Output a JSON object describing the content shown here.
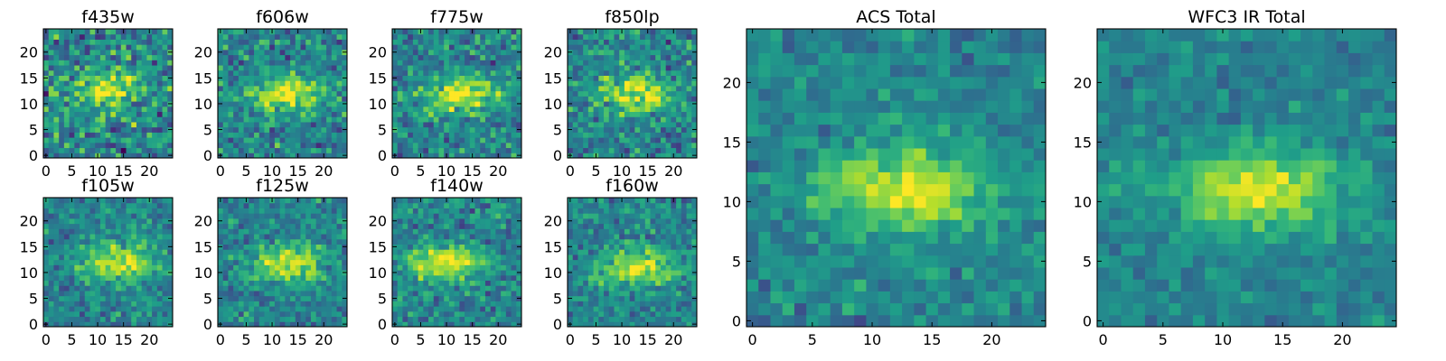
{
  "figure": {
    "background": "#ffffff"
  },
  "chart_data": [
    {
      "type": "heatmap",
      "title": "f435w",
      "xlabel": "",
      "ylabel": "",
      "grid": false,
      "colormap": "viridis",
      "xlim": [
        -0.5,
        24.5
      ],
      "ylim": [
        -0.5,
        24.5
      ],
      "xticks": [
        0,
        5,
        10,
        15,
        20
      ],
      "yticks": [
        0,
        5,
        10,
        15,
        20
      ],
      "peak": {
        "x": 12,
        "y": 13
      },
      "noise": 0.45,
      "seed": 11,
      "rows": 25,
      "cols": 25
    },
    {
      "type": "heatmap",
      "title": "f606w",
      "xlabel": "",
      "ylabel": "",
      "grid": false,
      "colormap": "viridis",
      "xlim": [
        -0.5,
        24.5
      ],
      "ylim": [
        -0.5,
        24.5
      ],
      "xticks": [
        0,
        5,
        10,
        15,
        20
      ],
      "yticks": [
        0,
        5,
        10,
        15,
        20
      ],
      "peak": {
        "x": 13,
        "y": 12
      },
      "noise": 0.35,
      "seed": 23,
      "rows": 25,
      "cols": 25
    },
    {
      "type": "heatmap",
      "title": "f775w",
      "xlabel": "",
      "ylabel": "",
      "grid": false,
      "colormap": "viridis",
      "xlim": [
        -0.5,
        24.5
      ],
      "ylim": [
        -0.5,
        24.5
      ],
      "xticks": [
        0,
        5,
        10,
        15,
        20
      ],
      "yticks": [
        0,
        5,
        10,
        15,
        20
      ],
      "peak": {
        "x": 13,
        "y": 12
      },
      "noise": 0.35,
      "seed": 37,
      "rows": 25,
      "cols": 25
    },
    {
      "type": "heatmap",
      "title": "f850lp",
      "xlabel": "",
      "ylabel": "",
      "grid": false,
      "colormap": "viridis",
      "xlim": [
        -0.5,
        24.5
      ],
      "ylim": [
        -0.5,
        24.5
      ],
      "xticks": [
        0,
        5,
        10,
        15,
        20
      ],
      "yticks": [
        0,
        5,
        10,
        15,
        20
      ],
      "peak": {
        "x": 13,
        "y": 12
      },
      "noise": 0.35,
      "seed": 41,
      "rows": 25,
      "cols": 25
    },
    {
      "type": "heatmap",
      "title": "f105w",
      "xlabel": "",
      "ylabel": "",
      "grid": false,
      "colormap": "viridis",
      "xlim": [
        -0.5,
        24.5
      ],
      "ylim": [
        -0.5,
        24.5
      ],
      "xticks": [
        0,
        5,
        10,
        15,
        20
      ],
      "yticks": [
        0,
        5,
        10,
        15,
        20
      ],
      "peak": {
        "x": 14,
        "y": 12
      },
      "noise": 0.28,
      "seed": 53,
      "rows": 25,
      "cols": 25
    },
    {
      "type": "heatmap",
      "title": "f125w",
      "xlabel": "",
      "ylabel": "",
      "grid": false,
      "colormap": "viridis",
      "xlim": [
        -0.5,
        24.5
      ],
      "ylim": [
        -0.5,
        24.5
      ],
      "xticks": [
        0,
        5,
        10,
        15,
        20
      ],
      "yticks": [
        0,
        5,
        10,
        15,
        20
      ],
      "peak": {
        "x": 13,
        "y": 12
      },
      "noise": 0.28,
      "seed": 67,
      "rows": 25,
      "cols": 25
    },
    {
      "type": "heatmap",
      "title": "f140w",
      "xlabel": "",
      "ylabel": "",
      "grid": false,
      "colormap": "viridis",
      "xlim": [
        -0.5,
        24.5
      ],
      "ylim": [
        -0.5,
        24.5
      ],
      "xticks": [
        0,
        5,
        10,
        15,
        20
      ],
      "yticks": [
        0,
        5,
        10,
        15,
        20
      ],
      "peak": {
        "x": 10,
        "y": 12
      },
      "noise": 0.3,
      "seed": 71,
      "rows": 25,
      "cols": 25
    },
    {
      "type": "heatmap",
      "title": "f160w",
      "xlabel": "",
      "ylabel": "",
      "grid": false,
      "colormap": "viridis",
      "xlim": [
        -0.5,
        24.5
      ],
      "ylim": [
        -0.5,
        24.5
      ],
      "xticks": [
        0,
        5,
        10,
        15,
        20
      ],
      "yticks": [
        0,
        5,
        10,
        15,
        20
      ],
      "peak": {
        "x": 13,
        "y": 11
      },
      "noise": 0.28,
      "seed": 89,
      "rows": 25,
      "cols": 25
    },
    {
      "type": "heatmap",
      "title": "ACS Total",
      "xlabel": "",
      "ylabel": "",
      "grid": false,
      "colormap": "viridis",
      "xlim": [
        -0.5,
        24.5
      ],
      "ylim": [
        -0.5,
        24.5
      ],
      "xticks": [
        0,
        5,
        10,
        15,
        20
      ],
      "yticks": [
        0,
        5,
        10,
        15,
        20
      ],
      "peak": {
        "x": 13,
        "y": 11
      },
      "noise": 0.22,
      "seed": 97,
      "rows": 25,
      "cols": 25
    },
    {
      "type": "heatmap",
      "title": "WFC3 IR Total",
      "xlabel": "",
      "ylabel": "",
      "grid": false,
      "colormap": "viridis",
      "xlim": [
        -0.5,
        24.5
      ],
      "ylim": [
        -0.5,
        24.5
      ],
      "xticks": [
        0,
        5,
        10,
        15,
        20
      ],
      "yticks": [
        0,
        5,
        10,
        15,
        20
      ],
      "peak": {
        "x": 13,
        "y": 11
      },
      "noise": 0.18,
      "seed": 101,
      "rows": 25,
      "cols": 25
    }
  ]
}
